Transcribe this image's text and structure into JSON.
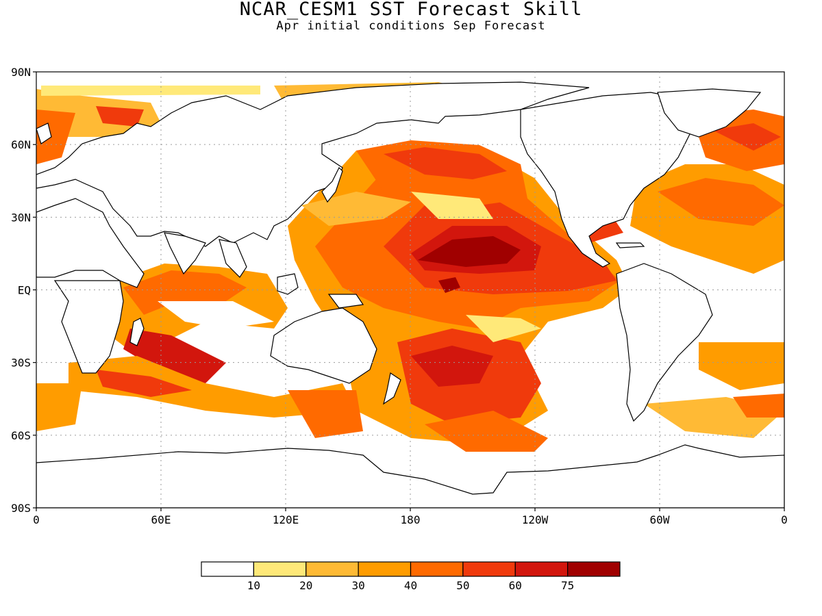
{
  "title": "NCAR_CESM1 SST Forecast Skill",
  "subtitle": "Apr initial conditions  Sep Forecast",
  "map": {
    "lat_labels": [
      "90N",
      "60N",
      "30N",
      "EQ",
      "30S",
      "60S",
      "90S"
    ],
    "lon_labels": [
      "0",
      "60E",
      "120E",
      "180",
      "120W",
      "60W",
      "0"
    ],
    "grid": true
  },
  "legend": {
    "colors": [
      "#ffffff",
      "#ffe979",
      "#ffba35",
      "#ff9c00",
      "#ff6a00",
      "#f03a0c",
      "#d2160d",
      "#a00000"
    ],
    "labels": [
      "10",
      "20",
      "30",
      "40",
      "50",
      "60",
      "75"
    ]
  }
}
